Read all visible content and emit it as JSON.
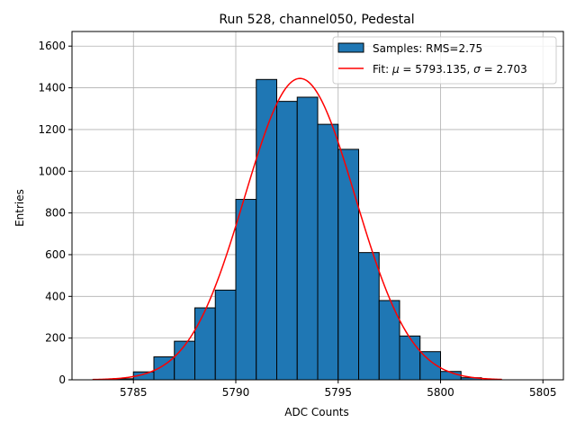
{
  "chart_data": {
    "type": "bar",
    "title": "Run 528, channel050, Pedestal",
    "xlabel": "ADC Counts",
    "ylabel": "Entries",
    "xlim": [
      5782.0,
      5806.0
    ],
    "ylim": [
      0,
      1670
    ],
    "xticks": [
      5785,
      5790,
      5795,
      5800,
      5805
    ],
    "yticks": [
      0,
      200,
      400,
      600,
      800,
      1000,
      1200,
      1400,
      1600
    ],
    "grid": true,
    "legend_position": "top-right",
    "histogram": {
      "bin_edges": [
        5783,
        5784,
        5785,
        5786,
        5787,
        5788,
        5789,
        5790,
        5791,
        5792,
        5793,
        5794,
        5795,
        5796,
        5797,
        5798,
        5799,
        5800,
        5801,
        5802,
        5803
      ],
      "counts": [
        0,
        5,
        38,
        110,
        185,
        345,
        430,
        865,
        1440,
        1335,
        1355,
        1225,
        1105,
        610,
        380,
        210,
        135,
        40,
        10,
        0
      ],
      "color": "#1f77b4",
      "legend": "Samples: RMS=2.75"
    },
    "fit": {
      "mu": 5793.135,
      "sigma": 2.703,
      "amplitude": 1445,
      "x_range": [
        5783,
        5803
      ],
      "color": "#ff0000",
      "legend_prefix": "Fit: ",
      "legend_mu_symbol": "μ",
      "legend_mu_value": " = 5793.135, ",
      "legend_sigma_symbol": "σ",
      "legend_sigma_value": " = 2.703"
    }
  }
}
